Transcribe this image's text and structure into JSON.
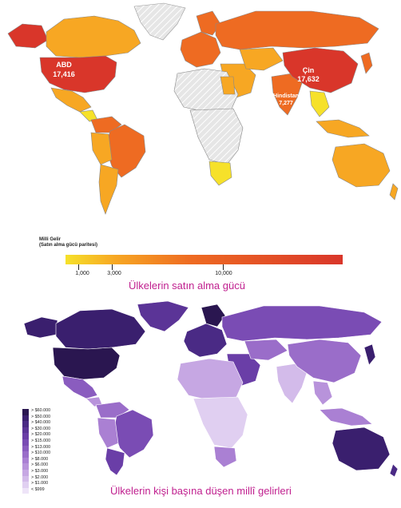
{
  "top_map": {
    "callouts": [
      {
        "name": "ABD",
        "value": "17,416"
      },
      {
        "name": "Çin",
        "value": "17,632"
      },
      {
        "name": "Hindistan",
        "value": "7,277"
      }
    ],
    "legend": {
      "title_line1": "Milli Gelir",
      "title_line2": "(Satın alma gücü paritesi)",
      "ticks": [
        "1,000",
        "3,000",
        "10,000"
      ],
      "colors": [
        "#f6e12a",
        "#f7a723",
        "#ee6b22",
        "#d9362a"
      ]
    },
    "caption": "Ülkelerin satın alma gücü"
  },
  "bottom_map": {
    "legend": {
      "labels": [
        "> $60.000",
        "> $50.000",
        "> $40.000",
        "> $30.000",
        "> $20.000",
        "> $15.000",
        "> $13.000",
        "> $10.000",
        "> $8.000",
        "> $6.000",
        "> $3.000",
        "> $2.000",
        "> $1.000",
        "< $999"
      ],
      "colors": [
        "#2a1650",
        "#3a1f6e",
        "#4a2a85",
        "#5b3497",
        "#6a3ea7",
        "#7a4cb4",
        "#8a5cbf",
        "#9a6dc9",
        "#aa80d3",
        "#b893db",
        "#c6a7e3",
        "#d3bbea",
        "#e0cff1",
        "#eee4f8"
      ]
    },
    "caption": "Ülkelerin kişi başına düşen millî gelirleri"
  }
}
